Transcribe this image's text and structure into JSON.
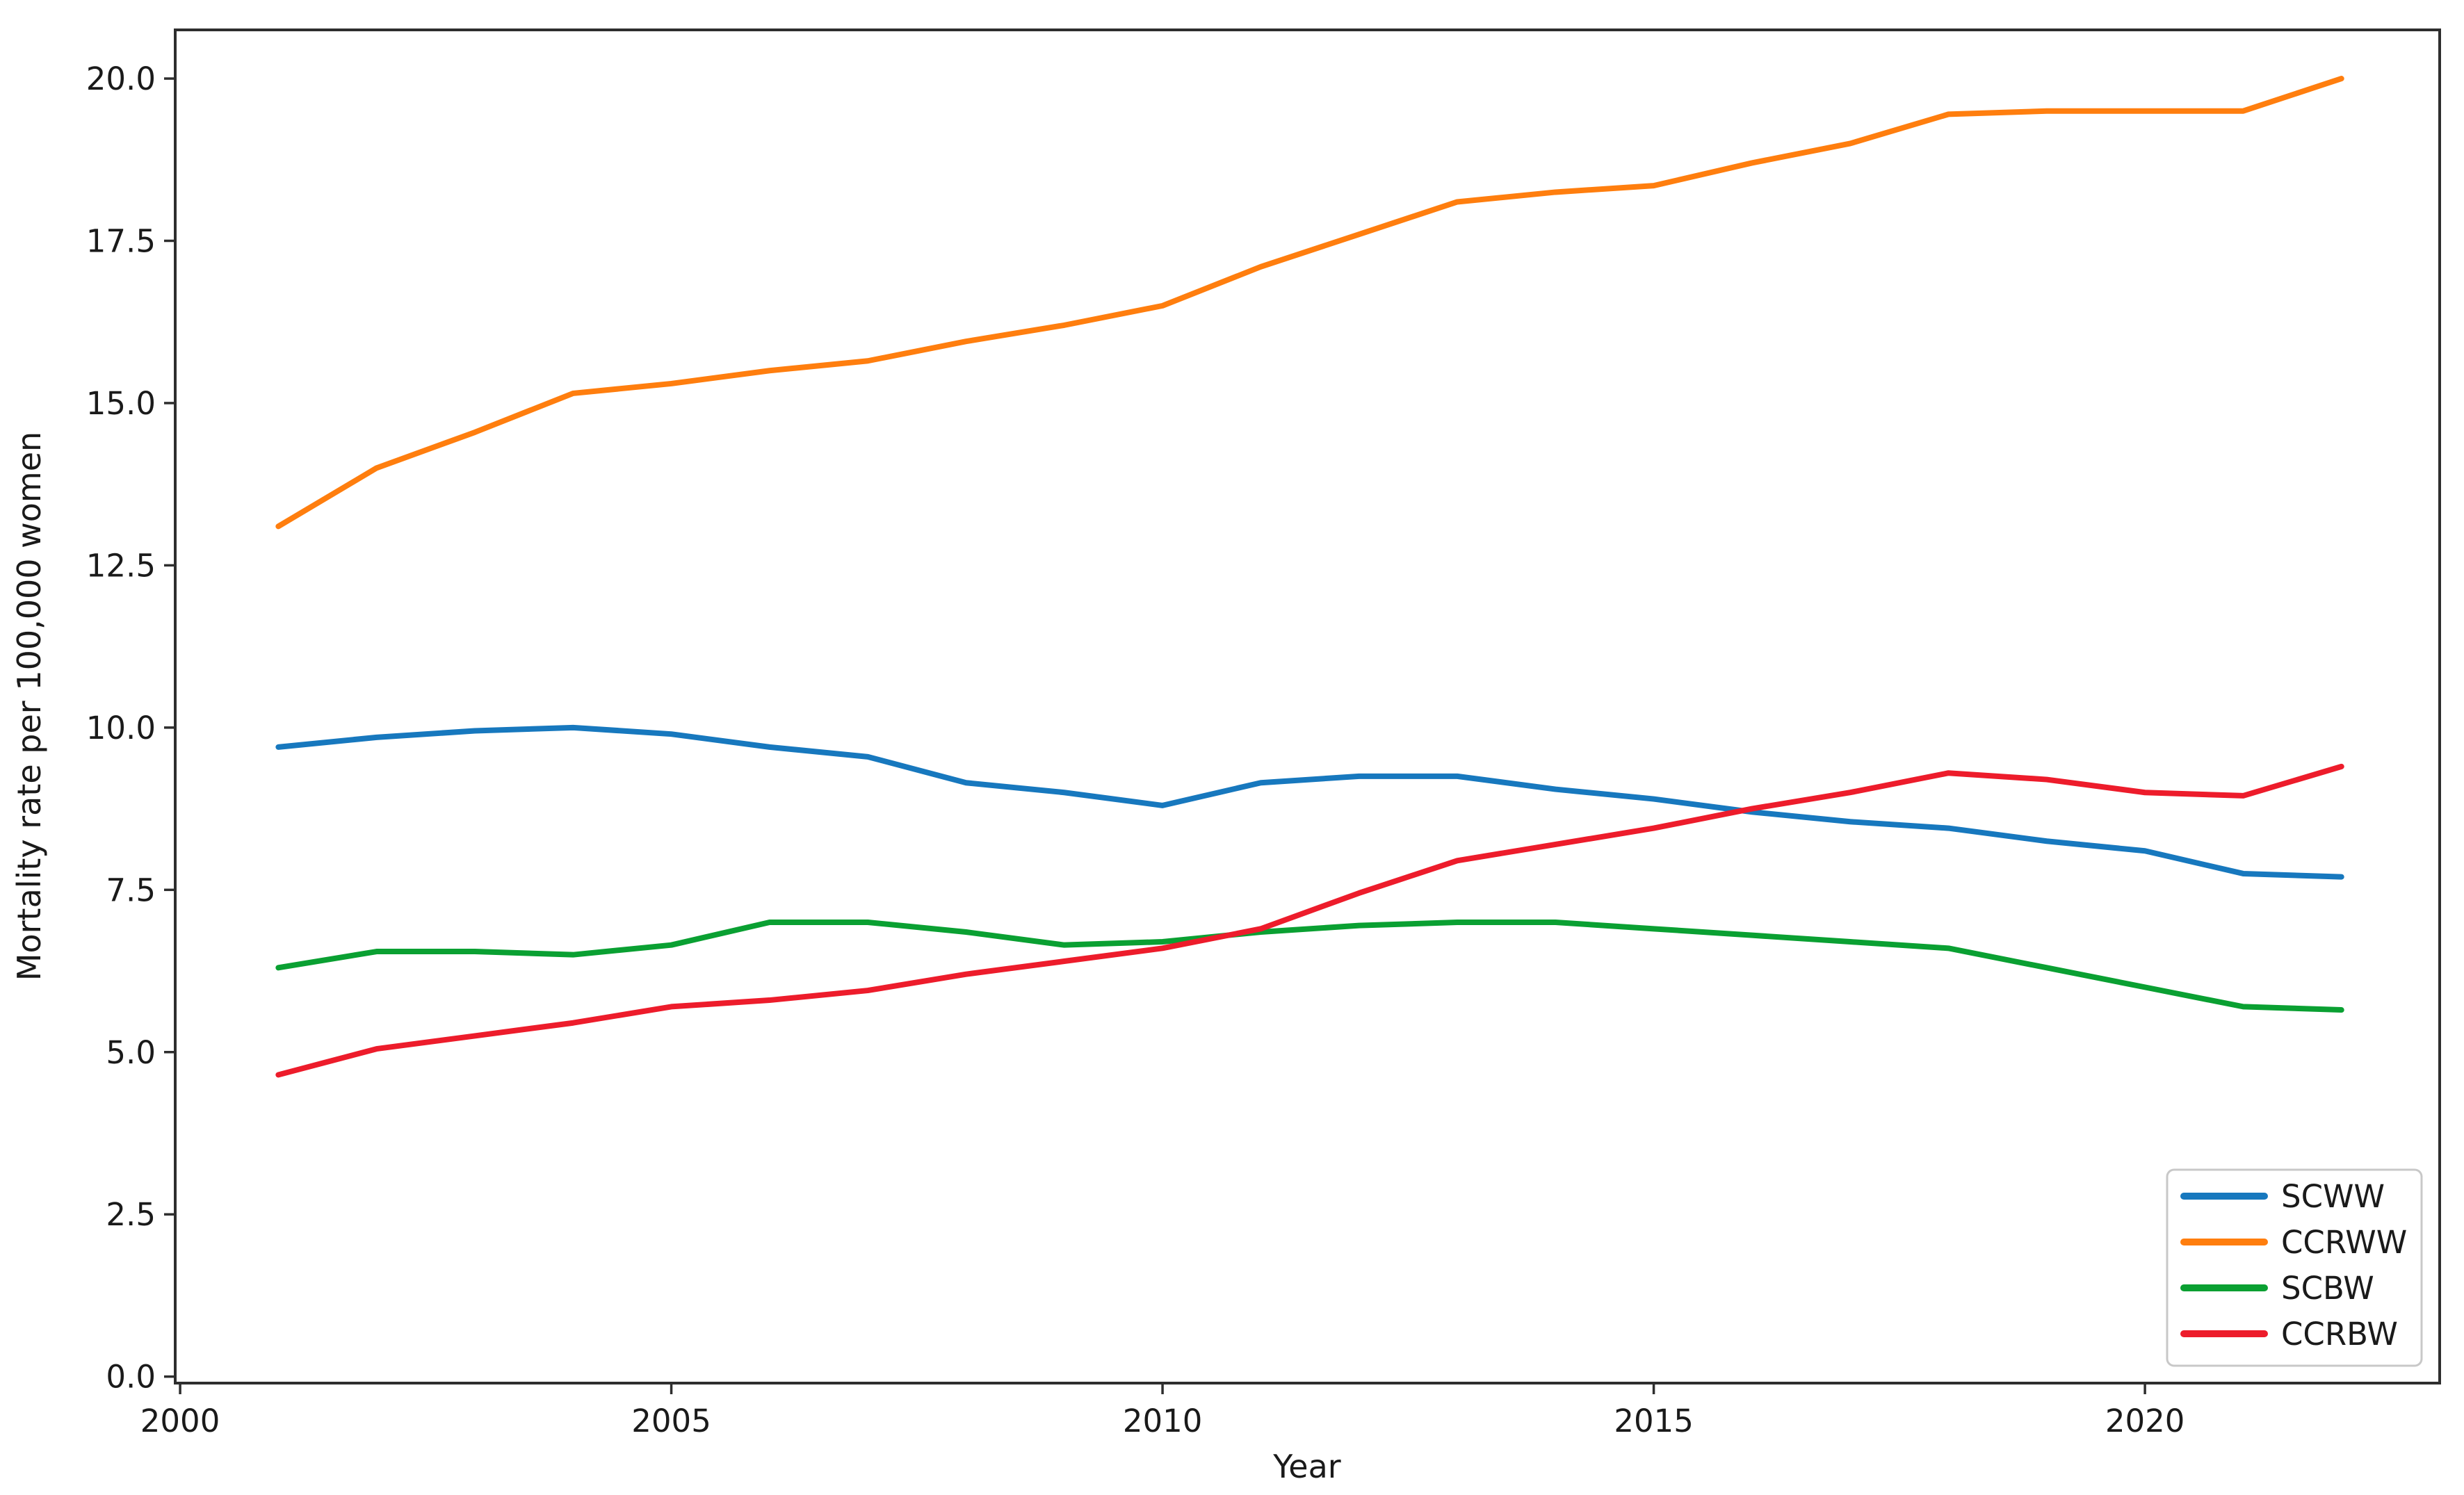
{
  "chart_data": {
    "type": "line",
    "title": "",
    "xlabel": "Year",
    "ylabel": "Mortality rate per 100,000 women",
    "x": [
      2001,
      2002,
      2003,
      2004,
      2005,
      2006,
      2007,
      2008,
      2009,
      2010,
      2011,
      2012,
      2013,
      2014,
      2015,
      2016,
      2017,
      2018,
      2019,
      2020,
      2021,
      2022
    ],
    "series": [
      {
        "name": "SCWW",
        "color": "#1778be",
        "values": [
          9.7,
          9.85,
          9.95,
          10.0,
          9.9,
          9.7,
          9.55,
          9.15,
          9.0,
          8.8,
          9.15,
          9.25,
          9.25,
          9.05,
          8.9,
          8.7,
          8.55,
          8.45,
          8.25,
          8.1,
          7.75,
          7.7
        ]
      },
      {
        "name": "CCRWW",
        "color": "#ff7e0e",
        "values": [
          13.1,
          14.0,
          14.55,
          15.15,
          15.3,
          15.5,
          15.65,
          15.95,
          16.2,
          16.5,
          17.1,
          17.6,
          18.1,
          18.25,
          18.35,
          18.7,
          19.0,
          19.45,
          19.5,
          19.5,
          19.5,
          20.0
        ]
      },
      {
        "name": "SCBW",
        "color": "#0aa032",
        "values": [
          6.3,
          6.55,
          6.55,
          6.5,
          6.65,
          7.0,
          7.0,
          6.85,
          6.65,
          6.7,
          6.85,
          6.95,
          7.0,
          7.0,
          6.9,
          6.8,
          6.7,
          6.6,
          6.3,
          6.0,
          5.7,
          5.65
        ]
      },
      {
        "name": "CCRBW",
        "color": "#ed1c2b",
        "values": [
          4.65,
          5.05,
          5.25,
          5.45,
          5.7,
          5.8,
          5.95,
          6.2,
          6.4,
          6.6,
          6.9,
          7.45,
          7.95,
          8.2,
          8.45,
          8.75,
          9.0,
          9.3,
          9.2,
          9.0,
          8.95,
          9.4
        ]
      }
    ],
    "xticks": [
      "2000",
      "2005",
      "2010",
      "2015",
      "2020"
    ],
    "yticks": [
      "0.0",
      "2.5",
      "5.0",
      "7.5",
      "10.0",
      "12.5",
      "15.0",
      "17.5",
      "20.0"
    ],
    "xlim": [
      1999.95,
      2023.0
    ],
    "ylim": [
      -0.1,
      20.75
    ],
    "legend_position": "lower right",
    "grid": false
  }
}
